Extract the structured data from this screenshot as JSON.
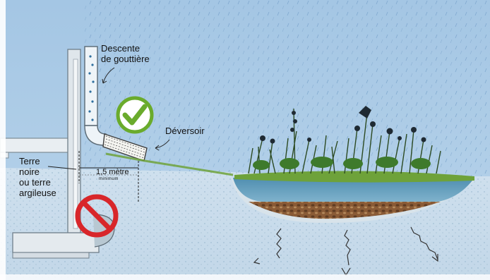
{
  "labels": {
    "downspout": "Descente\nde gouttière",
    "weir": "Déversoir",
    "soil": "Terre\nnoire\nou terre\nargileuse",
    "distance": "1,5 mètre",
    "distance_note": "minimum"
  },
  "symbols": {
    "correct": "check-icon",
    "forbidden": "no-entry-icon"
  },
  "colors": {
    "sky": "#a9c9e6",
    "ground": "#c9dcea",
    "check": "#6aab2c",
    "forbidden": "#d8262a",
    "water": "#4d87a8",
    "grass": "#6ea23a",
    "gravel": "#8a5b36"
  }
}
